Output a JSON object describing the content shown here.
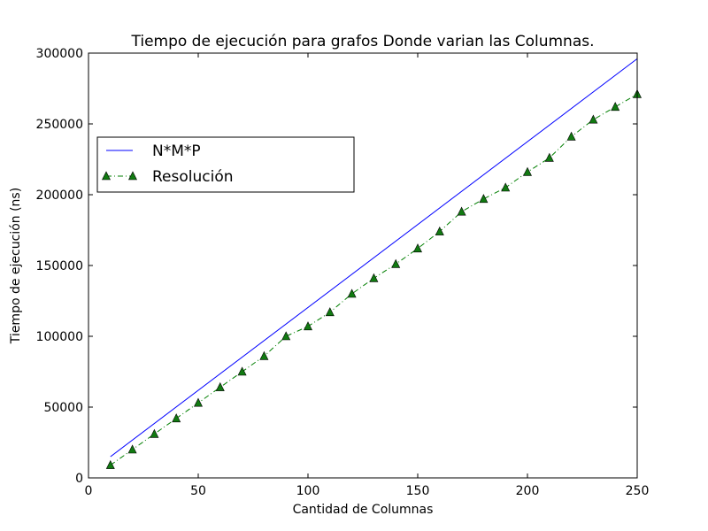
{
  "chart_data": {
    "type": "line",
    "title": "Tiempo de ejecución para grafos Donde varian las Columnas.",
    "xlabel": "Cantidad de Columnas",
    "ylabel": "Tiempo de ejecución (ns)",
    "xlim": [
      0,
      250
    ],
    "ylim": [
      0,
      300000
    ],
    "xticks": [
      0,
      50,
      100,
      150,
      200,
      250
    ],
    "yticks": [
      0,
      50000,
      100000,
      150000,
      200000,
      250000,
      300000
    ],
    "grid": false,
    "legend_position": "upper-left",
    "series": [
      {
        "name": "N*M*P",
        "color": "#0000ff",
        "line_style": "solid",
        "marker": "none",
        "x": [
          10,
          250
        ],
        "y": [
          15000,
          296000
        ]
      },
      {
        "name": "Resolución",
        "color": "#007f00",
        "marker_color": "#117a11",
        "line_style": "dashdot",
        "marker": "triangle-up",
        "x": [
          10,
          20,
          30,
          40,
          50,
          60,
          70,
          80,
          90,
          100,
          110,
          120,
          130,
          140,
          150,
          160,
          170,
          180,
          190,
          200,
          210,
          220,
          230,
          240,
          250
        ],
        "y": [
          9000,
          20000,
          31000,
          42000,
          53000,
          64000,
          75000,
          86000,
          100000,
          107000,
          117000,
          130000,
          141000,
          151000,
          162000,
          174000,
          188000,
          197000,
          205000,
          216000,
          226000,
          241000,
          253000,
          262000,
          271000
        ]
      }
    ]
  }
}
